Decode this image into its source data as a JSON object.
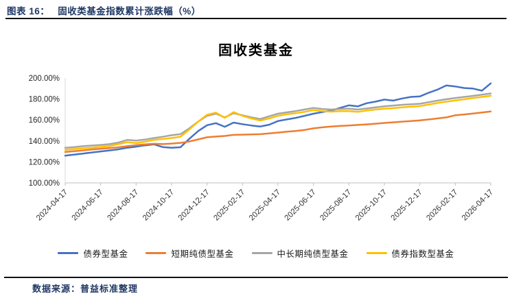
{
  "page": {
    "header_label": "图表 16：",
    "header_title": "固收类基金指数累计涨跌幅（%）",
    "footer": "数据来源：普益标准整理"
  },
  "chart_data": {
    "type": "line",
    "title": "固收类基金",
    "legend_position": "bottom",
    "grid": false,
    "y_axis": {
      "min": 100,
      "max": 200,
      "step": 20,
      "tick_labels": [
        "100.00%",
        "120.00%",
        "140.00%",
        "160.00%",
        "180.00%",
        "200.00%"
      ]
    },
    "x_axis": {
      "unit": "months since 2024-04-17",
      "span_months": 24,
      "step_months": 0.5,
      "tick_labels": [
        "2024-04-17",
        "2024-06-17",
        "2024-08-17",
        "2024-10-17",
        "2024-12-17",
        "2025-02-17",
        "2025-04-17",
        "2025-06-17",
        "2025-08-17",
        "2025-10-17",
        "2025-12-17",
        "2026-02-17",
        "2026-04-17"
      ]
    },
    "series": [
      {
        "name": "债券型基金",
        "color": "#4472C4",
        "values": [
          126.0,
          127.0,
          128.0,
          129.0,
          130.0,
          131.0,
          132.0,
          133.5,
          134.5,
          135.8,
          136.8,
          134.2,
          133.5,
          134.0,
          142.0,
          149.5,
          155.0,
          157.0,
          153.5,
          157.5,
          156.0,
          154.8,
          153.8,
          155.5,
          159.0,
          160.5,
          162.0,
          164.0,
          166.0,
          167.5,
          169.0,
          171.5,
          174.0,
          173.0,
          176.0,
          177.5,
          179.5,
          178.5,
          180.5,
          182.0,
          182.5,
          186.0,
          189.0,
          193.0,
          192.0,
          190.5,
          190.0,
          188.0,
          195.0
        ]
      },
      {
        "name": "短期纯债型基金",
        "color": "#ED7D31",
        "values": [
          129.5,
          130.2,
          131.0,
          131.8,
          132.5,
          133.3,
          134.0,
          135.0,
          136.0,
          136.8,
          137.3,
          137.0,
          137.5,
          138.2,
          139.5,
          141.5,
          143.5,
          144.2,
          144.8,
          145.8,
          146.0,
          146.3,
          146.5,
          147.2,
          148.0,
          148.8,
          149.5,
          150.5,
          152.0,
          153.0,
          153.8,
          154.3,
          154.8,
          155.3,
          155.8,
          156.5,
          157.2,
          157.8,
          158.4,
          159.0,
          159.6,
          160.5,
          161.5,
          162.5,
          164.5,
          165.3,
          166.2,
          167.2,
          168.2
        ]
      },
      {
        "name": "中长期纯债型基金",
        "color": "#A5A5A5",
        "values": [
          133.5,
          134.2,
          135.0,
          135.6,
          136.2,
          137.0,
          138.5,
          141.0,
          140.3,
          141.3,
          142.8,
          144.0,
          145.5,
          146.5,
          152.0,
          158.5,
          164.0,
          166.0,
          162.5,
          166.5,
          164.5,
          162.5,
          161.0,
          163.5,
          166.0,
          167.3,
          168.5,
          170.0,
          171.5,
          170.5,
          170.0,
          170.5,
          170.7,
          170.0,
          171.0,
          172.0,
          173.0,
          173.8,
          174.5,
          175.0,
          175.5,
          177.0,
          178.5,
          179.8,
          181.0,
          182.0,
          183.0,
          184.2,
          185.3
        ]
      },
      {
        "name": "债券指数型基金",
        "color": "#FFC000",
        "values": [
          131.5,
          132.3,
          133.0,
          133.6,
          134.3,
          135.2,
          137.0,
          138.8,
          138.0,
          139.3,
          141.0,
          141.8,
          142.8,
          144.0,
          151.0,
          158.5,
          165.0,
          167.0,
          162.0,
          167.5,
          164.0,
          161.5,
          159.5,
          161.5,
          164.0,
          165.5,
          166.5,
          167.8,
          169.5,
          168.5,
          168.0,
          168.5,
          168.4,
          167.8,
          169.0,
          170.0,
          170.7,
          171.3,
          172.0,
          172.7,
          173.3,
          174.8,
          176.3,
          177.5,
          178.6,
          179.8,
          181.0,
          182.0,
          183.1
        ]
      }
    ],
    "axis_colors": {
      "axis_line": "#bfbfbf",
      "tick_text": "#333333"
    }
  }
}
